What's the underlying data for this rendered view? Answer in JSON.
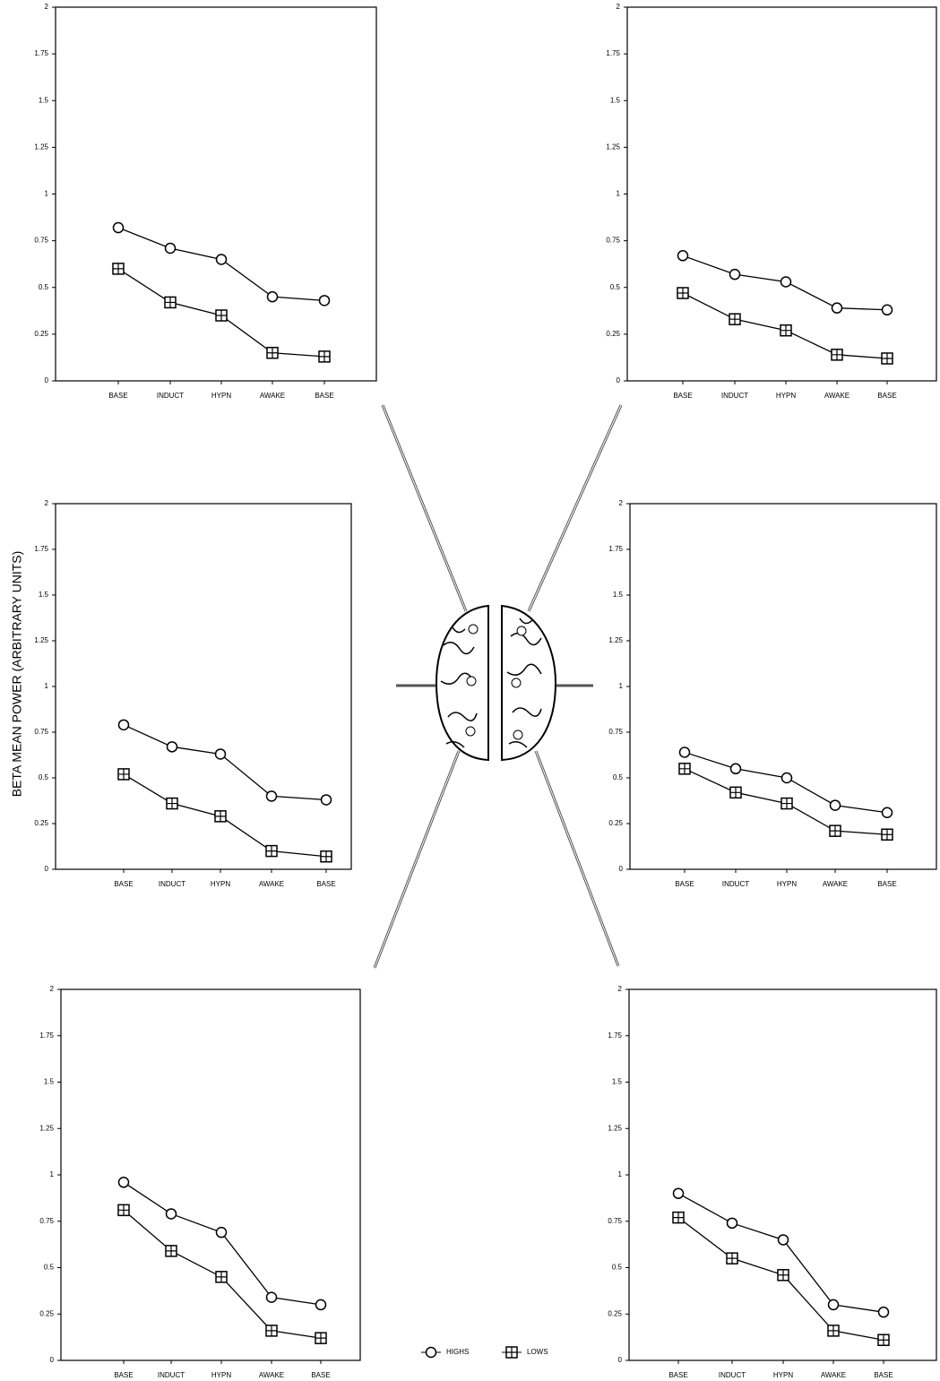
{
  "chart_data": [
    {
      "type": "line",
      "categories": [
        "BASE",
        "INDUCT",
        "HYPN",
        "AWAKE",
        "BASE"
      ],
      "series": [
        {
          "name": "HIGHS",
          "color": "#000000",
          "marker": "circle",
          "values": [
            0.82,
            0.71,
            0.65,
            0.45,
            0.43
          ]
        },
        {
          "name": "LOWS",
          "color": "#000000",
          "marker": "square-cross",
          "values": [
            0.6,
            0.42,
            0.35,
            0.15,
            0.13
          ]
        }
      ],
      "ylim": [
        0,
        2
      ],
      "yticks": [
        0,
        0.25,
        0.5,
        0.75,
        1,
        1.25,
        1.5,
        1.75,
        2
      ],
      "grid": false
    },
    {
      "type": "line",
      "categories": [
        "BASE",
        "INDUCT",
        "HYPN",
        "AWAKE",
        "BASE"
      ],
      "series": [
        {
          "name": "HIGHS",
          "color": "#000000",
          "marker": "circle",
          "values": [
            0.67,
            0.57,
            0.53,
            0.39,
            0.38
          ]
        },
        {
          "name": "LOWS",
          "color": "#000000",
          "marker": "square-cross",
          "values": [
            0.47,
            0.33,
            0.27,
            0.14,
            0.12
          ]
        }
      ],
      "ylim": [
        0,
        2
      ],
      "yticks": [
        0,
        0.25,
        0.5,
        0.75,
        1,
        1.25,
        1.5,
        1.75,
        2
      ],
      "grid": false
    },
    {
      "type": "line",
      "categories": [
        "BASE",
        "INDUCT",
        "HYPN",
        "AWAKE",
        "BASE"
      ],
      "series": [
        {
          "name": "HIGHS",
          "color": "#000000",
          "marker": "circle",
          "values": [
            0.79,
            0.67,
            0.63,
            0.4,
            0.38
          ]
        },
        {
          "name": "LOWS",
          "color": "#000000",
          "marker": "square-cross",
          "values": [
            0.52,
            0.36,
            0.29,
            0.1,
            0.07
          ]
        }
      ],
      "ylim": [
        0,
        2
      ],
      "yticks": [
        0,
        0.25,
        0.5,
        0.75,
        1,
        1.25,
        1.5,
        1.75,
        2
      ],
      "grid": false,
      "ylabel": "BETA MEAN POWER (ARBITRARY UNITS)"
    },
    {
      "type": "line",
      "categories": [
        "BASE",
        "INDUCT",
        "HYPN",
        "AWAKE",
        "BASE"
      ],
      "series": [
        {
          "name": "HIGHS",
          "color": "#000000",
          "marker": "circle",
          "values": [
            0.64,
            0.55,
            0.5,
            0.35,
            0.31
          ]
        },
        {
          "name": "LOWS",
          "color": "#000000",
          "marker": "square-cross",
          "values": [
            0.55,
            0.42,
            0.36,
            0.21,
            0.19
          ]
        }
      ],
      "ylim": [
        0,
        2
      ],
      "yticks": [
        0,
        0.25,
        0.5,
        0.75,
        1,
        1.25,
        1.5,
        1.75,
        2
      ],
      "grid": false
    },
    {
      "type": "line",
      "categories": [
        "BASE",
        "INDUCT",
        "HYPN",
        "AWAKE",
        "BASE"
      ],
      "series": [
        {
          "name": "HIGHS",
          "color": "#000000",
          "marker": "circle",
          "values": [
            0.96,
            0.79,
            0.69,
            0.34,
            0.3
          ]
        },
        {
          "name": "LOWS",
          "color": "#000000",
          "marker": "square-cross",
          "values": [
            0.81,
            0.59,
            0.45,
            0.16,
            0.12
          ]
        }
      ],
      "ylim": [
        0,
        2
      ],
      "yticks": [
        0,
        0.25,
        0.5,
        0.75,
        1,
        1.25,
        1.5,
        1.75,
        2
      ],
      "grid": false
    },
    {
      "type": "line",
      "categories": [
        "BASE",
        "INDUCT",
        "HYPN",
        "AWAKE",
        "BASE"
      ],
      "series": [
        {
          "name": "HIGHS",
          "color": "#000000",
          "marker": "circle",
          "values": [
            0.9,
            0.74,
            0.65,
            0.3,
            0.26
          ]
        },
        {
          "name": "LOWS",
          "color": "#000000",
          "marker": "square-cross",
          "values": [
            0.77,
            0.55,
            0.46,
            0.16,
            0.11
          ]
        }
      ],
      "ylim": [
        0,
        2
      ],
      "yticks": [
        0,
        0.25,
        0.5,
        0.75,
        1,
        1.25,
        1.5,
        1.75,
        2
      ],
      "grid": false
    }
  ]
}
